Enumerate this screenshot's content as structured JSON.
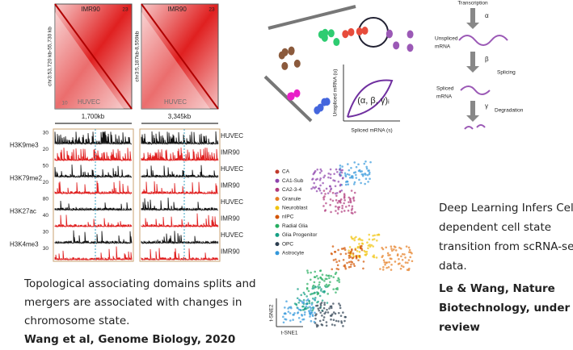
{
  "left_figure": {
    "heatmaps": [
      {
        "top_label": "IMR90",
        "top_number": "23",
        "bottom_label": "HUVEC",
        "bottom_number": "10",
        "axis_label": "chr3:53,720 kb-55,730 kb",
        "scale": "1,700kb"
      },
      {
        "top_label": "IMR90",
        "top_number": "23",
        "bottom_label": "HUVEC",
        "axis_label": "chr3:5,187kb-8,559kb",
        "scale": "3,345kb"
      }
    ],
    "track_marks": [
      "H3K9me3",
      "H3K79me2",
      "H3K27ac",
      "H3K4me3"
    ],
    "track_maxima": [
      "30",
      "20",
      "50",
      "20",
      "80",
      "40",
      "30",
      "30"
    ],
    "track_cells": [
      "HUVEC",
      "IMR90",
      "HUVEC",
      "IMR90",
      "HUVEC",
      "IMR90",
      "HUVEC",
      "IMR90"
    ],
    "caption_lines": [
      "Topological associating domains splits and",
      "mergers are associated with changes in",
      "chromosome state."
    ],
    "citation": "Wang et al, Genome Biology, 2020"
  },
  "velocity_diagram": {
    "y_axis": "Unspliced mRNA (u)",
    "x_axis": "Spliced mRNA (s)",
    "parameters": "(α, β, γ)ᵢ"
  },
  "kinetics": {
    "transcription": "Transcription",
    "alpha": "α",
    "unspliced": [
      "Unspliced",
      "mRNA"
    ],
    "beta": "β",
    "splicing": "Splicing",
    "spliced": [
      "Spliced",
      "mRNA"
    ],
    "gamma": "γ",
    "degradation": "Degradation"
  },
  "tsne": {
    "legend": [
      "CA",
      "CA1-Sub",
      "CA2-3-4",
      "Granule",
      "Neuroblast",
      "nIPC",
      "Radial Glia",
      "Glia Progenitor",
      "OPC",
      "Astrocyte"
    ],
    "x_axis": "t-SNE1",
    "y_axis": "t-SNE2"
  },
  "right_text": {
    "lines": [
      "Deep Learning Infers Cell-",
      "dependent cell state",
      "transition from scRNA-seq",
      "data."
    ],
    "citation_lines": [
      "Le & Wang, Nature",
      "Biotechnology, under",
      "review"
    ]
  }
}
